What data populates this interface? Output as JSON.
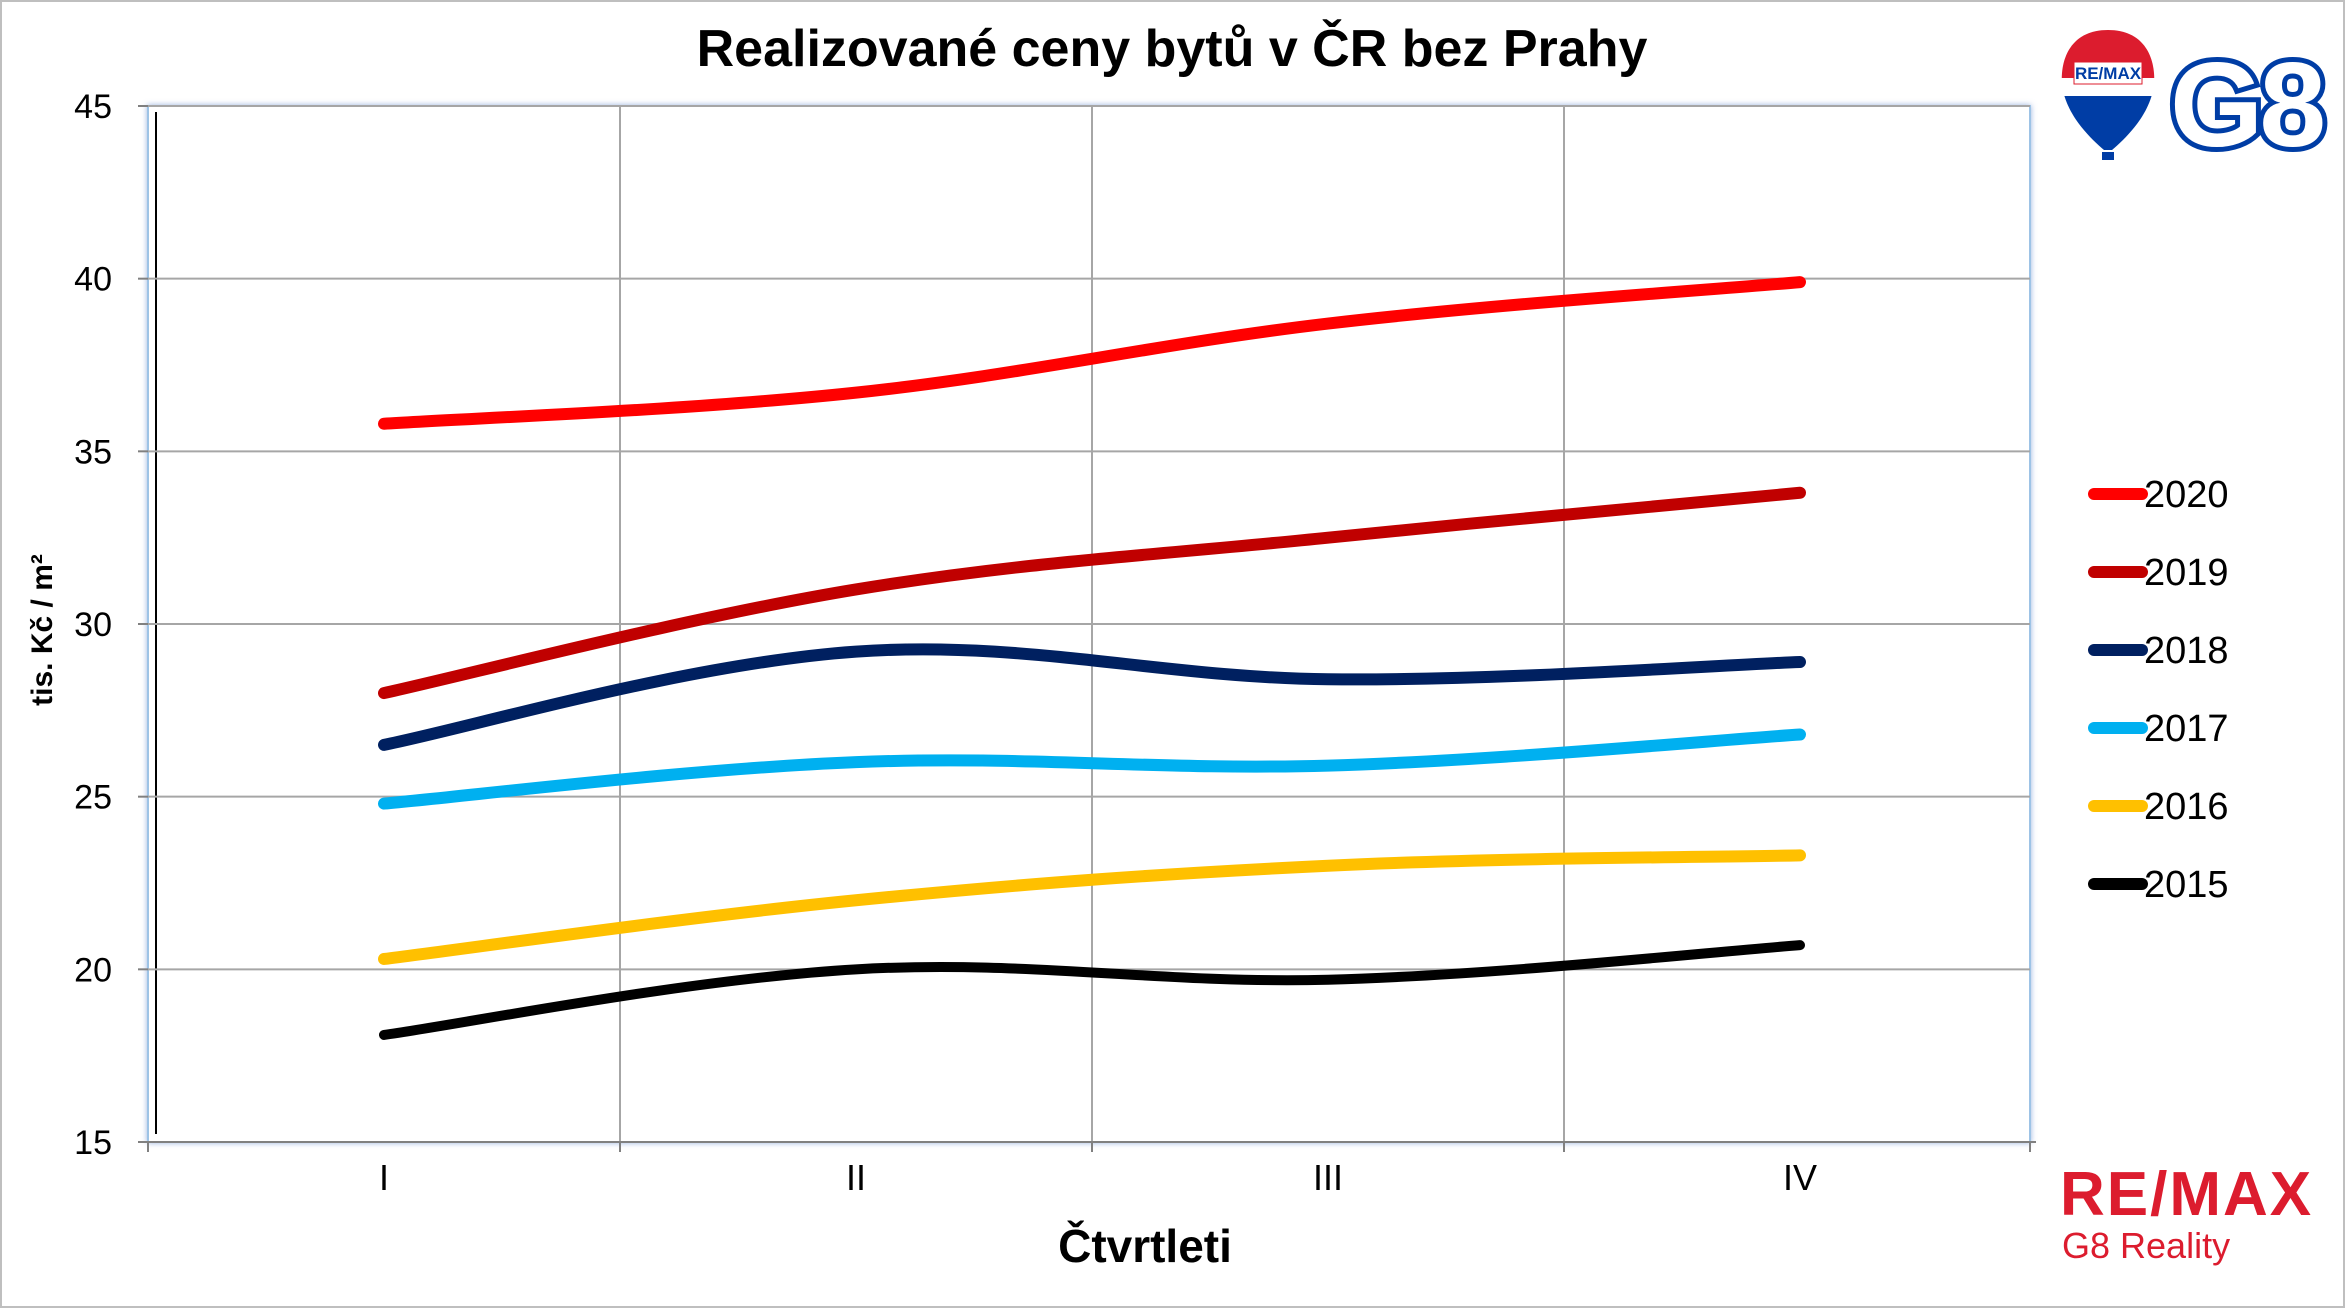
{
  "chart_data": {
    "type": "line",
    "title": "Realizované ceny bytů v ČR bez Prahy",
    "xlabel": "Čtvrtleti",
    "ylabel": "tis. Kč / m²",
    "categories": [
      "I",
      "II",
      "III",
      "IV"
    ],
    "ylim": [
      15,
      45
    ],
    "yticks": [
      15,
      20,
      25,
      30,
      35,
      40,
      45
    ],
    "grid": true,
    "smooth": true,
    "legend_position": "right",
    "series": [
      {
        "name": "2020",
        "color": "#ff0000",
        "values": [
          35.8,
          36.7,
          38.7,
          39.9
        ]
      },
      {
        "name": "2019",
        "color": "#c00000",
        "values": [
          28.0,
          31.0,
          32.5,
          33.8
        ]
      },
      {
        "name": "2018",
        "color": "#002060",
        "values": [
          26.5,
          29.2,
          28.4,
          28.9
        ]
      },
      {
        "name": "2017",
        "color": "#00b0f0",
        "values": [
          24.8,
          26.0,
          25.9,
          26.8
        ]
      },
      {
        "name": "2016",
        "color": "#ffc000",
        "values": [
          20.3,
          22.0,
          23.0,
          23.3
        ]
      },
      {
        "name": "2015",
        "color": "#000000",
        "values": [
          18.1,
          20.0,
          19.7,
          20.7
        ]
      }
    ]
  },
  "branding": {
    "balloon_text": "RE/MAX",
    "badge_text": "G8",
    "brand_name": "RE/MAX",
    "brand_subtitle": "G8 Reality",
    "brand_red": "#dc1c2e",
    "brand_blue": "#003da5"
  }
}
